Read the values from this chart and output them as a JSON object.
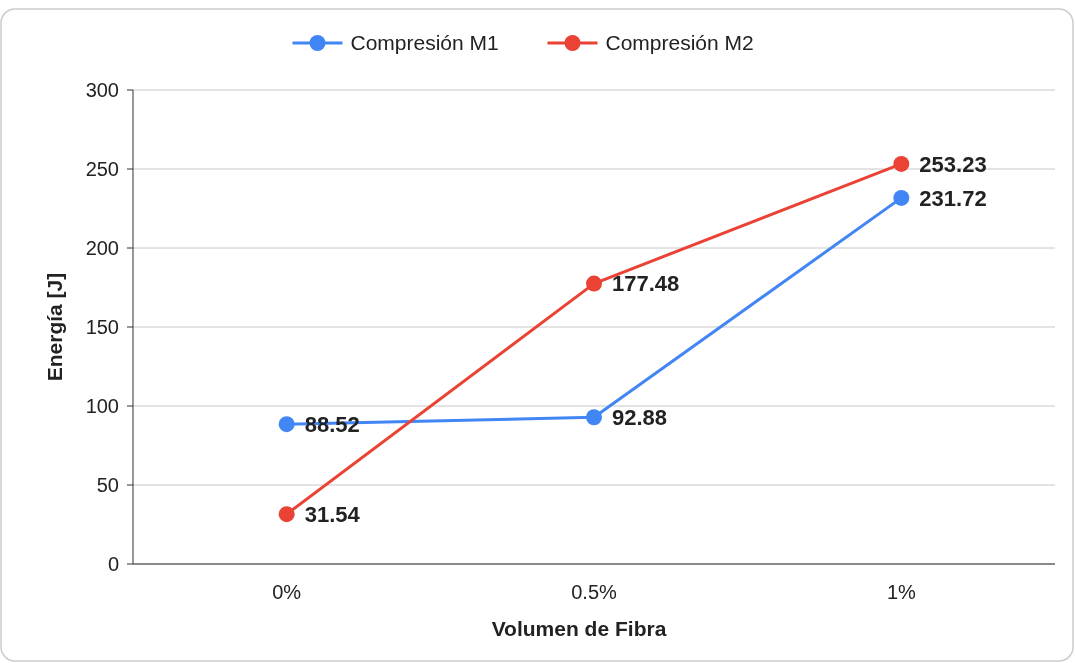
{
  "chart_data": {
    "type": "line",
    "xlabel": "Volumen de Fibra",
    "ylabel": "Energía [J]",
    "categories": [
      "0%",
      "0.5%",
      "1%"
    ],
    "series": [
      {
        "name": "Compresión M1",
        "color": "#4285f4",
        "values": [
          88.52,
          92.88,
          231.72
        ]
      },
      {
        "name": "Compresión M2",
        "color": "#ea4335",
        "values": [
          31.54,
          177.48,
          253.23
        ]
      }
    ],
    "ylim": [
      0,
      300
    ],
    "yticks": [
      0,
      50,
      100,
      150,
      200,
      250,
      300
    ],
    "grid": "y",
    "legend": "top",
    "marker": "circle",
    "line_style": "solid",
    "data_labels": true
  }
}
